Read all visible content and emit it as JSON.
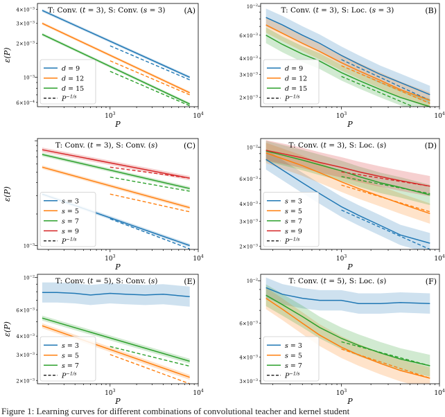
{
  "caption": "Figure 1: Learning curves for different combinations of convolutional teacher and kernel student",
  "styles": {
    "colors": [
      "#1f77b4",
      "#ff7f0e",
      "#2ca02c",
      "#d62728"
    ],
    "axis_color": "#000000"
  },
  "chart_data": [
    {
      "id": "A",
      "type": "line",
      "panel_label": "(A)",
      "title": "T: Conv. (t = 3),   S: Conv. (s = 3)",
      "title_parts": [
        "T: Conv. (",
        "t",
        " = 3),   S: Conv. (",
        "s",
        " = 3)"
      ],
      "xlabel": "P",
      "ylabel": "ε(P)",
      "xscale": "log",
      "yscale": "log",
      "xlim": [
        150,
        10000
      ],
      "ylim": [
        0.00055,
        0.0045
      ],
      "xticks": [
        {
          "v": 1000,
          "base": "10",
          "exp": "3"
        },
        {
          "v": 10000,
          "base": "10",
          "exp": "4"
        }
      ],
      "yticks": [
        {
          "v": 0.0006,
          "m": "6",
          "exp": "−4"
        },
        {
          "v": 0.001,
          "m": "10",
          "exp": "−3"
        },
        {
          "v": 0.002,
          "m": "2",
          "exp": "−3"
        },
        {
          "v": 0.003,
          "m": "3",
          "exp": "−3"
        },
        {
          "v": 0.004,
          "m": "4",
          "exp": "−3"
        }
      ],
      "series": [
        {
          "name": "d = 9",
          "var": "d",
          "val": "9",
          "x": [
            170,
            8000
          ],
          "y": [
            0.0039,
            0.001
          ],
          "band": 0.03,
          "power_law": {
            "x": [
              1000,
              8000
            ],
            "y": [
              0.0019,
              0.00095
            ]
          }
        },
        {
          "name": "d = 12",
          "var": "d",
          "val": "12",
          "x": [
            170,
            8000
          ],
          "y": [
            0.003,
            0.00073
          ],
          "band": 0.03,
          "power_law": {
            "x": [
              1000,
              8000
            ],
            "y": [
              0.0014,
              0.0007
            ]
          }
        },
        {
          "name": "d = 15",
          "var": "d",
          "val": "15",
          "x": [
            170,
            8000
          ],
          "y": [
            0.0024,
            0.00058
          ],
          "band": 0.03,
          "power_law": {
            "x": [
              1000,
              8000
            ],
            "y": [
              0.00113,
              0.00056
            ]
          }
        }
      ],
      "legend": {
        "position": "lower-left",
        "items": [
          "d = 9",
          "d = 12",
          "d = 15",
          "P^{−1/s}"
        ],
        "power_label": {
          "base": "P",
          "exp": "−1/s"
        }
      }
    },
    {
      "id": "B",
      "type": "line",
      "panel_label": "(B)",
      "title": "T: Conv. (t = 3),   S: Loc. (s = 3)",
      "title_parts": [
        "T: Conv. (",
        "t",
        " = 3),   S: Loc. (",
        "s",
        " = 3)"
      ],
      "xlabel": "P",
      "ylabel": "",
      "xscale": "log",
      "yscale": "log",
      "xlim": [
        150,
        10000
      ],
      "ylim": [
        0.0017,
        0.0105
      ],
      "xticks": [
        {
          "v": 1000,
          "base": "10",
          "exp": "3"
        },
        {
          "v": 10000,
          "base": "10",
          "exp": "4"
        }
      ],
      "yticks": [
        {
          "v": 0.002,
          "m": "2",
          "exp": "−3"
        },
        {
          "v": 0.003,
          "m": "3",
          "exp": "−3"
        },
        {
          "v": 0.004,
          "m": "4",
          "exp": "−3"
        },
        {
          "v": 0.006,
          "m": "6",
          "exp": "−3"
        },
        {
          "v": 0.01,
          "m": "10",
          "exp": "−2"
        }
      ],
      "series": [
        {
          "name": "d = 9",
          "var": "d",
          "val": "9",
          "x": [
            170,
            250,
            400,
            600,
            1000,
            1500,
            2500,
            4000,
            8000
          ],
          "y": [
            0.0082,
            0.0072,
            0.006,
            0.0052,
            0.0042,
            0.0036,
            0.003,
            0.0026,
            0.0021
          ],
          "band": 0.17,
          "power_law": {
            "x": [
              1000,
              8000
            ],
            "y": [
              0.0039,
              0.0019
            ]
          }
        },
        {
          "name": "d = 12",
          "var": "d",
          "val": "12",
          "x": [
            170,
            250,
            400,
            600,
            1000,
            1500,
            2500,
            4000,
            8000
          ],
          "y": [
            0.0072,
            0.0062,
            0.0052,
            0.0045,
            0.0037,
            0.0032,
            0.0027,
            0.0023,
            0.0019
          ],
          "band": 0.15,
          "power_law": {
            "x": [
              1000,
              8000
            ],
            "y": [
              0.0035,
              0.0018
            ]
          }
        },
        {
          "name": "d = 15",
          "var": "d",
          "val": "15",
          "x": [
            170,
            250,
            400,
            600,
            1000,
            1500,
            2500,
            4000,
            8000
          ],
          "y": [
            0.006,
            0.0051,
            0.0043,
            0.0038,
            0.0031,
            0.0027,
            0.0023,
            0.002,
            0.0017
          ],
          "band": 0.15,
          "power_law": {
            "x": [
              1000,
              8000
            ],
            "y": [
              0.0029,
              0.0015
            ]
          }
        }
      ],
      "legend": {
        "position": "lower-left",
        "items": [
          "d = 9",
          "d = 12",
          "d = 15",
          "P^{−1/s}"
        ],
        "power_label": {
          "base": "P",
          "exp": "−1/s"
        }
      }
    },
    {
      "id": "C",
      "type": "line",
      "panel_label": "(C)",
      "title": "T: Conv. (t = 3),   S: Conv. (s)",
      "title_parts": [
        "T: Conv. (",
        "t",
        " = 3),   S: Conv. (",
        "s",
        ")"
      ],
      "xlabel": "P",
      "ylabel": "ε(P)",
      "xscale": "log",
      "yscale": "log",
      "xlim": [
        150,
        10000
      ],
      "ylim": [
        0.00092,
        0.0105
      ],
      "xticks": [
        {
          "v": 1000,
          "base": "10",
          "exp": "3"
        },
        {
          "v": 10000,
          "base": "10",
          "exp": "4"
        }
      ],
      "yticks": [
        {
          "v": 0.001,
          "m": "10",
          "exp": "−3"
        }
      ],
      "series": [
        {
          "name": "s = 3",
          "var": "s",
          "val": "3",
          "x": [
            170,
            8000
          ],
          "y": [
            0.0031,
            0.001
          ],
          "band": 0.04,
          "power_law": {
            "x": [
              1000,
              8000
            ],
            "y": [
              0.0018,
              0.00093
            ]
          }
        },
        {
          "name": "s = 5",
          "var": "s",
          "val": "5",
          "x": [
            170,
            8000
          ],
          "y": [
            0.0056,
            0.0023
          ],
          "band": 0.04,
          "power_law": {
            "x": [
              1000,
              8000
            ],
            "y": [
              0.0031,
              0.0021
            ]
          }
        },
        {
          "name": "s = 7",
          "var": "s",
          "val": "7",
          "x": [
            170,
            8000
          ],
          "y": [
            0.0074,
            0.0035
          ],
          "band": 0.04,
          "power_law": {
            "x": [
              1000,
              8000
            ],
            "y": [
              0.0045,
              0.0033
            ]
          }
        },
        {
          "name": "s = 9",
          "var": "s",
          "val": "9",
          "x": [
            170,
            8000
          ],
          "y": [
            0.0082,
            0.0044
          ],
          "band": 0.05,
          "power_law": {
            "x": [
              1000,
              8000
            ],
            "y": [
              0.0056,
              0.0044
            ]
          }
        }
      ],
      "legend": {
        "position": "lower-left",
        "items": [
          "s = 3",
          "s = 5",
          "s = 7",
          "s = 9",
          "P^{−1/s}"
        ],
        "power_label": {
          "base": "P",
          "exp": "−1/s"
        }
      }
    },
    {
      "id": "D",
      "type": "line",
      "panel_label": "(D)",
      "title": "T: Conv. (t = 3),   S: Loc. (s)",
      "title_parts": [
        "T: Conv. (",
        "t",
        " = 3),   S: Loc. (",
        "s",
        ")"
      ],
      "xlabel": "P",
      "ylabel": "",
      "xscale": "log",
      "yscale": "log",
      "xlim": [
        150,
        10000
      ],
      "ylim": [
        0.0019,
        0.0115
      ],
      "xticks": [
        {
          "v": 1000,
          "base": "10",
          "exp": "3"
        },
        {
          "v": 10000,
          "base": "10",
          "exp": "4"
        }
      ],
      "yticks": [
        {
          "v": 0.002,
          "m": "2",
          "exp": "−3"
        },
        {
          "v": 0.003,
          "m": "3",
          "exp": "−3"
        },
        {
          "v": 0.004,
          "m": "4",
          "exp": "−3"
        },
        {
          "v": 0.006,
          "m": "6",
          "exp": "−3"
        },
        {
          "v": 0.01,
          "m": "10",
          "exp": "−2"
        }
      ],
      "series": [
        {
          "name": "s = 3",
          "var": "s",
          "val": "3",
          "x": [
            170,
            250,
            400,
            600,
            1000,
            1500,
            2500,
            4000,
            8000
          ],
          "y": [
            0.0082,
            0.0069,
            0.0056,
            0.0047,
            0.0038,
            0.0033,
            0.0028,
            0.0024,
            0.0021
          ],
          "band": 0.18,
          "power_law": {
            "x": [
              1000,
              8000
            ],
            "y": [
              0.0036,
              0.0019
            ]
          }
        },
        {
          "name": "s = 5",
          "var": "s",
          "val": "5",
          "x": [
            170,
            250,
            400,
            600,
            1000,
            1500,
            2500,
            4000,
            8000
          ],
          "y": [
            0.0091,
            0.0083,
            0.0074,
            0.0066,
            0.0057,
            0.0051,
            0.0045,
            0.004,
            0.0034
          ],
          "band": 0.18,
          "power_law": {
            "x": [
              1000,
              8000
            ],
            "y": [
              0.0054,
              0.0035
            ]
          }
        },
        {
          "name": "s = 7",
          "var": "s",
          "val": "7",
          "x": [
            170,
            250,
            400,
            600,
            1000,
            1500,
            2500,
            4000,
            8000
          ],
          "y": [
            0.0094,
            0.0088,
            0.0081,
            0.0075,
            0.0068,
            0.0062,
            0.0056,
            0.0052,
            0.0046
          ],
          "band": 0.18,
          "power_law": {
            "x": [
              1000,
              8000
            ],
            "y": [
              0.0062,
              0.0047
            ]
          }
        },
        {
          "name": "s = 9",
          "var": "s",
          "val": "9",
          "x": [
            170,
            250,
            400,
            600,
            1000,
            1500,
            2500,
            4000,
            8000
          ],
          "y": [
            0.0095,
            0.009,
            0.0084,
            0.0078,
            0.0072,
            0.0067,
            0.0062,
            0.0058,
            0.0053
          ],
          "band": 0.18,
          "power_law": {
            "x": [
              1000,
              8000
            ],
            "y": [
              0.0067,
              0.0053
            ]
          }
        }
      ],
      "legend": {
        "position": "lower-left",
        "items": [
          "s = 3",
          "s = 5",
          "s = 7",
          "s = 9",
          "P^{−1/s}"
        ],
        "power_label": {
          "base": "P",
          "exp": "−1/s"
        }
      }
    },
    {
      "id": "E",
      "type": "line",
      "panel_label": "(E)",
      "title": "T: Conv. (t = 5),   S: Conv. (s)",
      "title_parts": [
        "T: Conv. (",
        "t",
        " = 5),   S: Conv. (",
        "s",
        ")"
      ],
      "xlabel": "P",
      "ylabel": "ε(P)",
      "xscale": "log",
      "yscale": "log",
      "xlim": [
        150,
        10000
      ],
      "ylim": [
        0.0019,
        0.0105
      ],
      "xticks": [
        {
          "v": 1000,
          "base": "10",
          "exp": "3"
        },
        {
          "v": 10000,
          "base": "10",
          "exp": "4"
        }
      ],
      "yticks": [
        {
          "v": 0.002,
          "m": "2",
          "exp": "−3"
        },
        {
          "v": 0.003,
          "m": "3",
          "exp": "−3"
        },
        {
          "v": 0.004,
          "m": "4",
          "exp": "−3"
        },
        {
          "v": 0.006,
          "m": "6",
          "exp": "−3"
        },
        {
          "v": 0.01,
          "m": "10",
          "exp": "−2"
        }
      ],
      "series": [
        {
          "name": "s = 3",
          "var": "s",
          "val": "3",
          "x": [
            170,
            250,
            400,
            600,
            1000,
            1500,
            2500,
            4000,
            8000
          ],
          "y": [
            0.0079,
            0.0079,
            0.0078,
            0.0076,
            0.0078,
            0.0077,
            0.0076,
            0.0077,
            0.0074
          ],
          "band": 0.17
        },
        {
          "name": "s = 5",
          "var": "s",
          "val": "5",
          "x": [
            170,
            8000
          ],
          "y": [
            0.0047,
            0.0021
          ],
          "band": 0.04,
          "power_law": {
            "x": [
              1000,
              8000
            ],
            "y": [
              0.003,
              0.0019
            ]
          }
        },
        {
          "name": "s = 7",
          "var": "s",
          "val": "7",
          "x": [
            170,
            8000
          ],
          "y": [
            0.0053,
            0.0027
          ],
          "band": 0.04,
          "power_law": {
            "x": [
              1000,
              8000
            ],
            "y": [
              0.0034,
              0.0025
            ]
          }
        }
      ],
      "legend": {
        "position": "lower-left",
        "items": [
          "s = 3",
          "s = 5",
          "s = 7",
          "P^{−1/s}"
        ],
        "power_label": {
          "base": "P",
          "exp": "−1/s"
        }
      }
    },
    {
      "id": "F",
      "type": "line",
      "panel_label": "(F)",
      "title": "T: Conv. (t = 5),   S: Loc. (s)",
      "title_parts": [
        "T: Conv. (",
        "t",
        " = 5),   S: Loc. (",
        "s",
        ")"
      ],
      "xlabel": "P",
      "ylabel": "",
      "xscale": "log",
      "yscale": "log",
      "xlim": [
        150,
        10000
      ],
      "ylim": [
        0.0029,
        0.0108
      ],
      "xticks": [
        {
          "v": 1000,
          "base": "10",
          "exp": "3"
        },
        {
          "v": 10000,
          "base": "10",
          "exp": "4"
        }
      ],
      "yticks": [
        {
          "v": 0.003,
          "m": "3",
          "exp": "−3"
        },
        {
          "v": 0.004,
          "m": "4",
          "exp": "−3"
        },
        {
          "v": 0.006,
          "m": "6",
          "exp": "−3"
        },
        {
          "v": 0.01,
          "m": "10",
          "exp": "−2"
        }
      ],
      "series": [
        {
          "name": "s = 3",
          "var": "s",
          "val": "3",
          "x": [
            170,
            250,
            400,
            600,
            1000,
            1500,
            2500,
            4000,
            8000
          ],
          "y": [
            0.0092,
            0.0085,
            0.0081,
            0.0079,
            0.0079,
            0.0076,
            0.0076,
            0.0077,
            0.0076
          ],
          "band": 0.13
        },
        {
          "name": "s = 5",
          "var": "s",
          "val": "5",
          "x": [
            170,
            250,
            400,
            600,
            1000,
            1500,
            2500,
            4000,
            8000
          ],
          "y": [
            0.0081,
            0.0071,
            0.006,
            0.0052,
            0.0045,
            0.0041,
            0.0037,
            0.0034,
            0.0031
          ],
          "band": 0.14,
          "power_law": {
            "x": [
              1000,
              8000
            ],
            "y": [
              0.0044,
              0.0031
            ]
          }
        },
        {
          "name": "s = 7",
          "var": "s",
          "val": "7",
          "x": [
            170,
            250,
            400,
            600,
            1000,
            1500,
            2500,
            4000,
            8000
          ],
          "y": [
            0.0084,
            0.0075,
            0.0065,
            0.0057,
            0.005,
            0.0046,
            0.0042,
            0.0039,
            0.0036
          ],
          "band": 0.14,
          "power_law": {
            "x": [
              1000,
              8000
            ],
            "y": [
              0.0048,
              0.0036
            ]
          }
        }
      ],
      "legend": {
        "position": "lower-left",
        "items": [
          "s = 3",
          "s = 5",
          "s = 7",
          "P^{−1/s}"
        ],
        "power_label": {
          "base": "P",
          "exp": "−1/s"
        }
      }
    }
  ]
}
